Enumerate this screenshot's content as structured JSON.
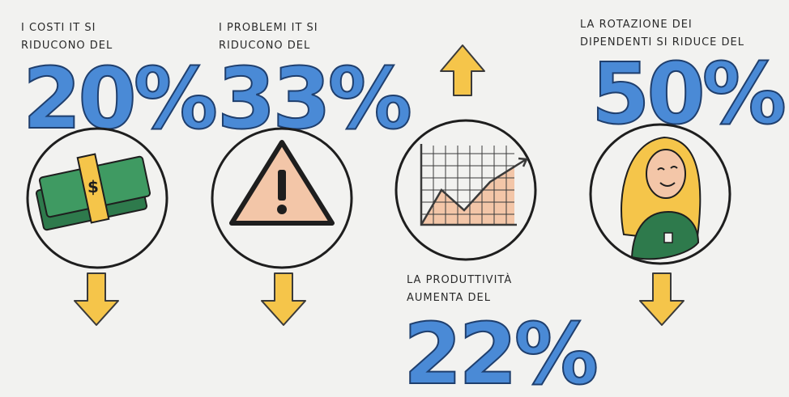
{
  "stats": [
    {
      "label": [
        "I COSTI IT SI",
        "RIDUCONO DEL"
      ],
      "value": "20%"
    },
    {
      "label": [
        "I PROBLEMI IT SI",
        "RIDUCONO DEL"
      ],
      "value": "33%"
    },
    {
      "label": [
        "LA PRODUTTIVITÀ",
        "AUMENTA DEL"
      ],
      "value": "22%"
    },
    {
      "label": [
        "LA ROTAZIONE DEI",
        "DIPENDENTI SI RIDUCE DEL"
      ],
      "value": "50%"
    }
  ]
}
